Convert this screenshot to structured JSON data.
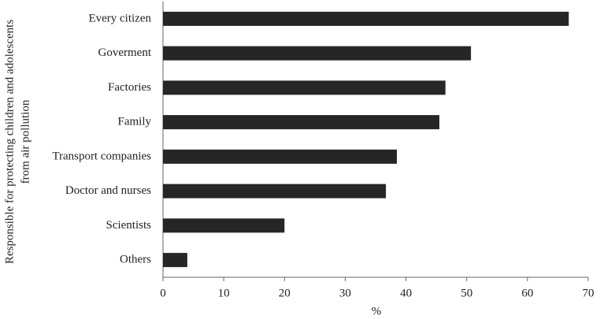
{
  "chart_data": {
    "type": "barh",
    "ylabel": [
      "Responsible for protecting children and adolescents",
      "from air pollution"
    ],
    "xlabel": "%",
    "categories": [
      "Every citizen",
      "Goverment",
      "Factories",
      "Family",
      "Transport companies",
      "Doctor and nurses",
      "Scientists",
      "Others"
    ],
    "values": [
      66.8,
      50.7,
      46.5,
      45.5,
      38.5,
      36.7,
      20.0,
      4.0
    ],
    "color": "#262626",
    "xlim": [
      0,
      70
    ],
    "xticks": [
      0,
      10,
      20,
      30,
      40,
      50,
      60,
      70
    ],
    "grid": false
  }
}
